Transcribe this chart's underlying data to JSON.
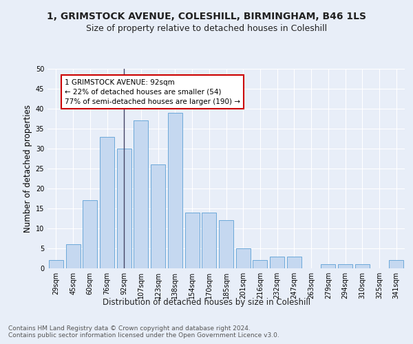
{
  "title1": "1, GRIMSTOCK AVENUE, COLESHILL, BIRMINGHAM, B46 1LS",
  "title2": "Size of property relative to detached houses in Coleshill",
  "xlabel": "Distribution of detached houses by size in Coleshill",
  "ylabel": "Number of detached properties",
  "footnote": "Contains HM Land Registry data © Crown copyright and database right 2024.\nContains public sector information licensed under the Open Government Licence v3.0.",
  "categories": [
    "29sqm",
    "45sqm",
    "60sqm",
    "76sqm",
    "92sqm",
    "107sqm",
    "123sqm",
    "138sqm",
    "154sqm",
    "170sqm",
    "185sqm",
    "201sqm",
    "216sqm",
    "232sqm",
    "247sqm",
    "263sqm",
    "279sqm",
    "294sqm",
    "310sqm",
    "325sqm",
    "341sqm"
  ],
  "values": [
    2,
    6,
    17,
    33,
    30,
    37,
    26,
    39,
    14,
    14,
    12,
    5,
    2,
    3,
    3,
    0,
    1,
    1,
    1,
    0,
    2
  ],
  "bar_color": "#c5d8f0",
  "bar_edge_color": "#5a9fd4",
  "annotation_text": "1 GRIMSTOCK AVENUE: 92sqm\n← 22% of detached houses are smaller (54)\n77% of semi-detached houses are larger (190) →",
  "annotation_box_color": "#ffffff",
  "annotation_box_edge": "#cc0000",
  "vline_color": "#444466",
  "ylim": [
    0,
    50
  ],
  "yticks": [
    0,
    5,
    10,
    15,
    20,
    25,
    30,
    35,
    40,
    45,
    50
  ],
  "bg_color": "#e8eef8",
  "plot_bg_color": "#e8eef8",
  "grid_color": "#ffffff",
  "title1_fontsize": 10,
  "title2_fontsize": 9,
  "xlabel_fontsize": 8.5,
  "ylabel_fontsize": 8.5,
  "tick_fontsize": 7,
  "annotation_fontsize": 7.5,
  "footnote_fontsize": 6.5
}
